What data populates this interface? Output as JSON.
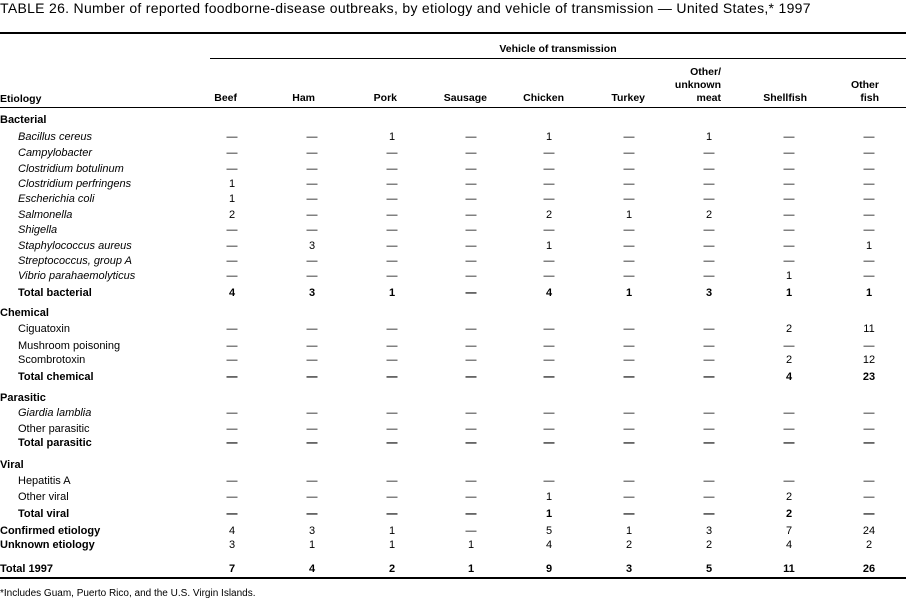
{
  "title": "TABLE 26. Number of reported foodborne-disease  outbreaks, by etiology and vehicle of transmission  — United States,* 1997",
  "spanner": "Vehicle of transmission",
  "etiology_header": "Etiology",
  "columns": [
    "Beef",
    "Ham",
    "Pork",
    "Sausage",
    "Chicken",
    "Turkey",
    "Other/ unknown meat",
    "Shellfish",
    "Other fish"
  ],
  "rows": [
    {
      "label": "Bacterial",
      "type": "group",
      "values": []
    },
    {
      "label": "Bacillus cereus",
      "type": "item",
      "italic": true,
      "values": [
        "—",
        "—",
        "1",
        "—",
        "1",
        "—",
        "1",
        "—",
        "—"
      ]
    },
    {
      "label": "Campylobacter",
      "type": "item",
      "italic": true,
      "values": [
        "—",
        "—",
        "—",
        "—",
        "—",
        "—",
        "—",
        "—",
        "—"
      ]
    },
    {
      "label": "Clostridium botulinum",
      "type": "item",
      "italic": true,
      "values": [
        "—",
        "—",
        "—",
        "—",
        "—",
        "—",
        "—",
        "—",
        "—"
      ]
    },
    {
      "label": "Clostridium perfringens",
      "type": "item",
      "italic": true,
      "values": [
        "1",
        "—",
        "—",
        "—",
        "—",
        "—",
        "—",
        "—",
        "—"
      ]
    },
    {
      "label": "Escherichia coli",
      "type": "item",
      "italic": true,
      "values": [
        "1",
        "—",
        "—",
        "—",
        "—",
        "—",
        "—",
        "—",
        "—"
      ]
    },
    {
      "label": "Salmonella",
      "type": "item",
      "italic": true,
      "values": [
        "2",
        "—",
        "—",
        "—",
        "2",
        "1",
        "2",
        "—",
        "—"
      ]
    },
    {
      "label": "Shigella",
      "type": "item",
      "italic": true,
      "values": [
        "—",
        "—",
        "—",
        "—",
        "—",
        "—",
        "—",
        "—",
        "—"
      ]
    },
    {
      "label": "Staphylococcus aureus",
      "type": "item",
      "italic": true,
      "values": [
        "—",
        "3",
        "—",
        "—",
        "1",
        "—",
        "—",
        "—",
        "1"
      ]
    },
    {
      "label": "Streptococcus, group A",
      "type": "item",
      "italic": true,
      "values": [
        "—",
        "—",
        "—",
        "—",
        "—",
        "—",
        "—",
        "—",
        "—"
      ]
    },
    {
      "label": "Vibrio parahaemolyticus",
      "type": "item",
      "italic": true,
      "values": [
        "—",
        "—",
        "—",
        "—",
        "—",
        "—",
        "—",
        "1",
        "—"
      ]
    },
    {
      "label": "Total bacterial",
      "type": "total",
      "values": [
        "4",
        "3",
        "1",
        "—",
        "4",
        "1",
        "3",
        "1",
        "1"
      ]
    },
    {
      "label": "Chemical",
      "type": "group",
      "values": []
    },
    {
      "label": "Ciguatoxin",
      "type": "item",
      "values": [
        "—",
        "—",
        "—",
        "—",
        "—",
        "—",
        "—",
        "2",
        "11"
      ]
    },
    {
      "label": "Mushroom poisoning",
      "type": "item",
      "values": [
        "—",
        "—",
        "—",
        "—",
        "—",
        "—",
        "—",
        "—",
        "—"
      ]
    },
    {
      "label": "Scombrotoxin",
      "type": "item",
      "values": [
        "—",
        "—",
        "—",
        "—",
        "—",
        "—",
        "—",
        "2",
        "12"
      ]
    },
    {
      "label": "Total chemical",
      "type": "total",
      "values": [
        "—",
        "—",
        "—",
        "—",
        "—",
        "—",
        "—",
        "4",
        "23"
      ]
    },
    {
      "label": "Parasitic",
      "type": "group",
      "values": []
    },
    {
      "label": "Giardia lamblia",
      "type": "item",
      "italic": true,
      "values": [
        "—",
        "—",
        "—",
        "—",
        "—",
        "—",
        "—",
        "—",
        "—"
      ]
    },
    {
      "label": "Other parasitic",
      "type": "item",
      "values": [
        "—",
        "—",
        "—",
        "—",
        "—",
        "—",
        "—",
        "—",
        "—"
      ]
    },
    {
      "label": "Total parasitic",
      "type": "total",
      "values": [
        "—",
        "—",
        "—",
        "—",
        "—",
        "—",
        "—",
        "—",
        "—"
      ]
    },
    {
      "label": "Viral",
      "type": "group",
      "values": []
    },
    {
      "label": "Hepatitis A",
      "type": "item",
      "values": [
        "—",
        "—",
        "—",
        "—",
        "—",
        "—",
        "—",
        "—",
        "—"
      ]
    },
    {
      "label": "Other viral",
      "type": "item",
      "values": [
        "—",
        "—",
        "—",
        "—",
        "1",
        "—",
        "—",
        "2",
        "—"
      ]
    },
    {
      "label": "Total viral",
      "type": "total",
      "values": [
        "—",
        "—",
        "—",
        "—",
        "1",
        "—",
        "—",
        "2",
        "—"
      ]
    },
    {
      "label": "Confirmed etiology",
      "type": "summary",
      "values": [
        "4",
        "3",
        "1",
        "—",
        "5",
        "1",
        "3",
        "7",
        "24"
      ]
    },
    {
      "label": "Unknown etiology",
      "type": "summary",
      "values": [
        "3",
        "1",
        "1",
        "1",
        "4",
        "2",
        "2",
        "4",
        "2"
      ]
    },
    {
      "label": "Total 1997",
      "type": "grand",
      "values": [
        "7",
        "4",
        "2",
        "1",
        "9",
        "3",
        "5",
        "11",
        "26"
      ]
    }
  ],
  "footnote": "*Includes Guam, Puerto Rico, and the U.S. Virgin Islands."
}
